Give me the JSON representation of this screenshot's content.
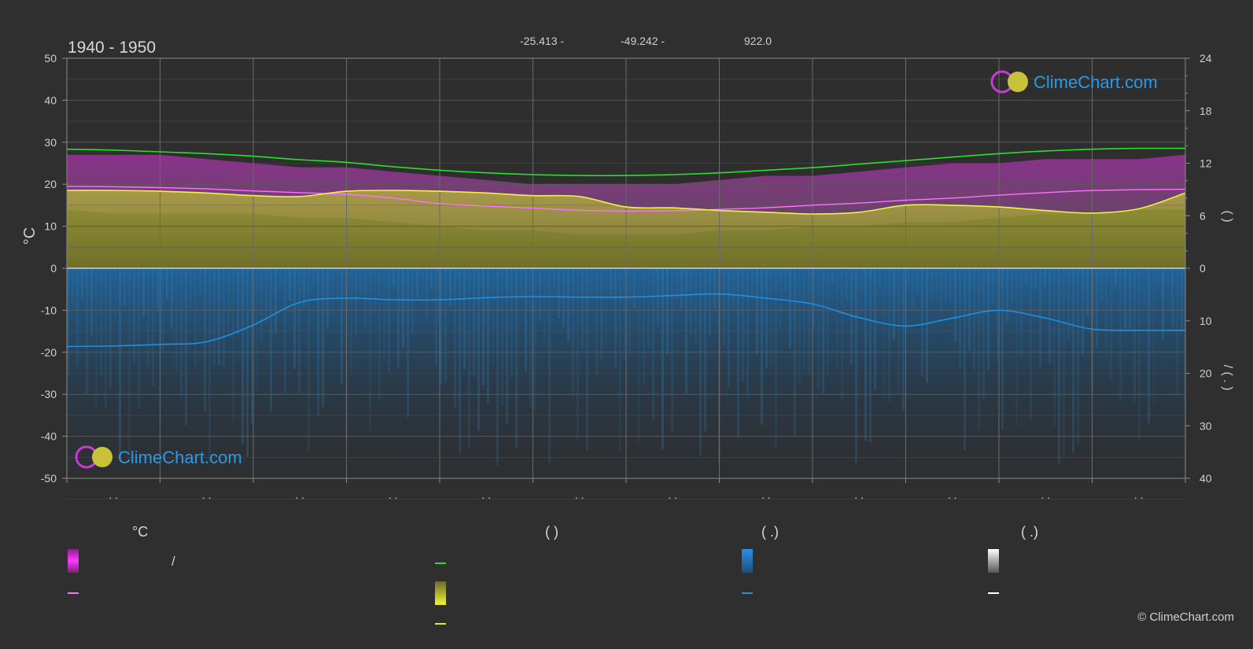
{
  "header": {
    "period": "1940 - 1950",
    "latitude": "-25.413 -",
    "longitude": "-49.242 -",
    "elevation": "922.0"
  },
  "watermark": {
    "brand": "ClimeChart.com"
  },
  "footer": {
    "copyright": "© ClimeChart.com"
  },
  "legend": {
    "groups": [
      {
        "head": "°C",
        "items": [
          "/",
          "",
          ""
        ]
      },
      {
        "head": "(          )",
        "items": [
          "",
          "",
          ""
        ]
      },
      {
        "head": "(   .)",
        "items": [
          "",
          ""
        ]
      },
      {
        "head": "(   .)",
        "items": [
          "",
          ""
        ]
      }
    ]
  },
  "colors": {
    "background": "#2f2f2f",
    "grid": "#5a5a5a",
    "daylight": "#29e029",
    "sunshine": "#d9d92e",
    "temp_mean": "#ff70ff",
    "temp_range": "#d633d6",
    "precip": "#1f8fe0",
    "brand": "#2a9ae6"
  },
  "chart_data": {
    "type": "line",
    "title": "1940 - 1950",
    "x_tick_labels": [
      ". .",
      ". .",
      ". .",
      ". .",
      ". .",
      ". .",
      ". .",
      ". .",
      ". .",
      ". .",
      ". .",
      ". ."
    ],
    "y_left": {
      "label": "°C",
      "ylim": [
        -50,
        50
      ],
      "ticks": [
        50,
        40,
        30,
        20,
        10,
        0,
        -10,
        -20,
        -30,
        -40,
        -50
      ]
    },
    "y_right_top": {
      "label": "(   )",
      "ylim": [
        0,
        24
      ],
      "ticks": [
        24,
        18,
        12,
        6,
        0
      ]
    },
    "y_right_bottom": {
      "label": "/     (   .   )",
      "ylim": [
        0,
        40
      ],
      "ticks": [
        0,
        10,
        20,
        30,
        40
      ]
    },
    "grid": true,
    "x": [
      0,
      0.5,
      1,
      1.5,
      2,
      2.5,
      3,
      3.5,
      4,
      4.5,
      5,
      5.5,
      6,
      6.5,
      7,
      7.5,
      8,
      8.5,
      9,
      9.5,
      10,
      10.5,
      11,
      11.5,
      12
    ],
    "series": [
      {
        "key": "daylight_hours",
        "axis": "right_top",
        "values": [
          13.6,
          13.5,
          13.3,
          13.1,
          12.8,
          12.4,
          12.1,
          11.6,
          11.2,
          10.9,
          10.7,
          10.6,
          10.6,
          10.7,
          10.9,
          11.2,
          11.5,
          11.9,
          12.3,
          12.7,
          13.1,
          13.4,
          13.6,
          13.7,
          13.7
        ]
      },
      {
        "key": "sunshine_hours",
        "axis": "right_top",
        "values": [
          8.9,
          8.9,
          8.8,
          8.6,
          8.3,
          8.2,
          8.8,
          8.9,
          8.8,
          8.6,
          8.3,
          8.2,
          7.0,
          6.9,
          6.6,
          6.4,
          6.2,
          6.4,
          7.2,
          7.2,
          7.0,
          6.6,
          6.3,
          6.8,
          8.6
        ]
      },
      {
        "key": "mean_temperature",
        "axis": "left",
        "values": [
          19.5,
          19.4,
          19.2,
          18.9,
          18.4,
          18.0,
          17.6,
          16.7,
          15.4,
          14.8,
          14.3,
          13.8,
          13.6,
          13.7,
          14.0,
          14.4,
          15.0,
          15.5,
          16.2,
          16.7,
          17.4,
          18.0,
          18.5,
          18.7,
          18.8
        ]
      },
      {
        "key": "precipitation_mm",
        "axis": "right_bottom",
        "values": [
          14.9,
          14.8,
          14.5,
          14.0,
          10.8,
          6.5,
          5.7,
          6.0,
          6.0,
          5.6,
          5.4,
          5.5,
          5.5,
          5.2,
          4.9,
          5.7,
          6.8,
          9.4,
          11.0,
          9.5,
          8.0,
          9.5,
          11.6,
          11.8,
          11.8
        ]
      }
    ],
    "bands": [
      {
        "key": "temperature_range",
        "axis": "left",
        "low": [
          14,
          13,
          13,
          13,
          13,
          12,
          12,
          11,
          10,
          9,
          9,
          8,
          8,
          8,
          9,
          9,
          10,
          10,
          11,
          11,
          12,
          13,
          13,
          14,
          14
        ],
        "high": [
          27,
          27,
          27,
          26,
          25,
          24,
          24,
          23,
          22,
          21,
          20,
          20,
          20,
          20,
          21,
          22,
          22,
          23,
          24,
          25,
          25,
          26,
          26,
          26,
          27
        ]
      }
    ]
  }
}
